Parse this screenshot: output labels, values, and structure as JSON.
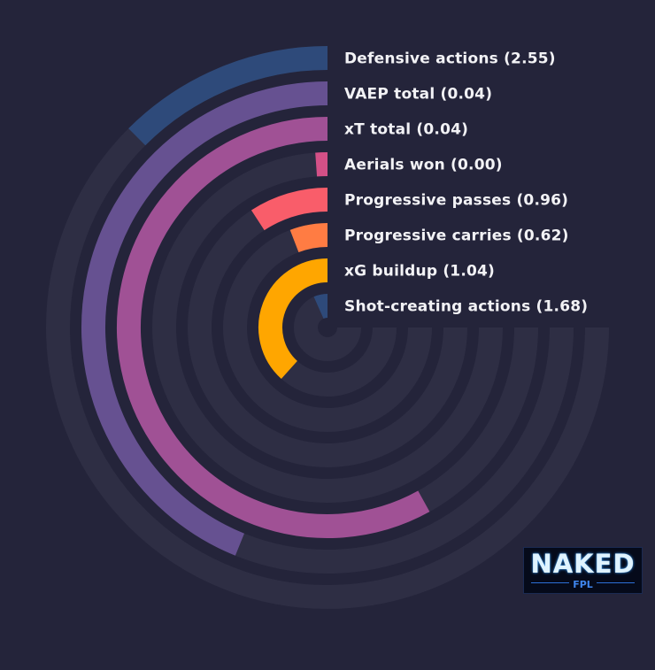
{
  "chart_data": {
    "type": "radial-bar",
    "max_value": 3,
    "series": [
      {
        "label": "Defensive actions (2.55)",
        "value": 2.55,
        "color": "#2e4a7a"
      },
      {
        "label": "VAEP total (0.04)",
        "value": 0.04,
        "color": "#665191"
      },
      {
        "label": "xT total (0.04)",
        "value": 0.04,
        "color": "#a05195"
      },
      {
        "label": "Aerials won (0.00)",
        "value": 0.0,
        "color": "#d45087"
      },
      {
        "label": "Progressive passes (0.96)",
        "value": 0.96,
        "color": "#f95d6a"
      },
      {
        "label": "Progressive carries (0.62)",
        "value": 0.62,
        "color": "#ff7c43"
      },
      {
        "label": "xG buildup (1.04)",
        "value": 1.04,
        "color": "#ffa600"
      },
      {
        "label": "Shot-creating actions (1.68)",
        "value": 1.68,
        "color": "#2e4a7a"
      }
    ],
    "bar_sweep_deg": [
      45,
      158,
      209,
      4,
      33,
      21,
      138,
      24
    ]
  },
  "logo": {
    "text": "NAKED",
    "subtext": "FPL"
  },
  "colors": {
    "background": "#24243a",
    "track": "#2e2e44",
    "label": "#f2f2f5"
  }
}
